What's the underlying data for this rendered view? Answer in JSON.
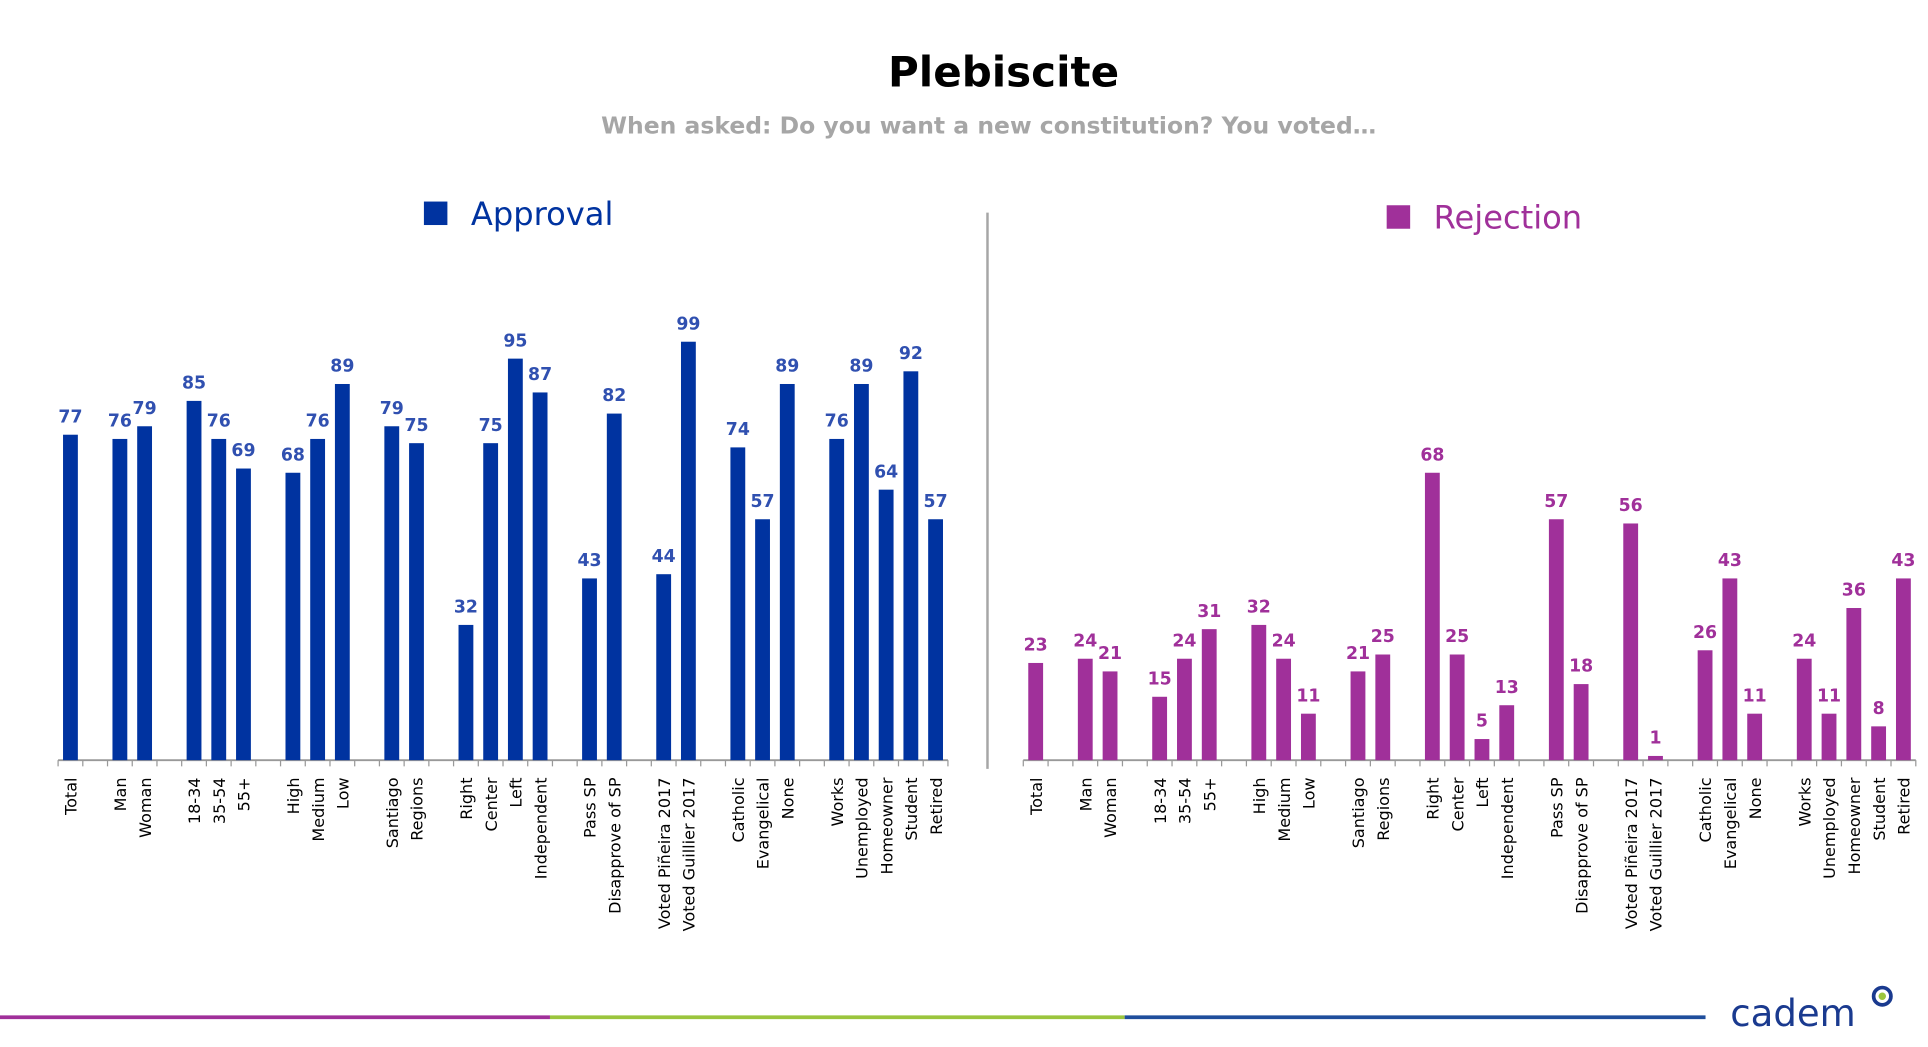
{
  "title": "Plebiscite",
  "subtitle": "When asked: Do you want a new constitution? You voted…",
  "logo": "cadem",
  "chart_data": [
    {
      "type": "bar",
      "categories": [
        "Total",
        null,
        "Man",
        "Woman",
        null,
        "18-34",
        "35-54",
        "55+",
        null,
        "High",
        "Medium",
        "Low",
        null,
        "Santiago",
        "Regions",
        null,
        "Right",
        "Center",
        "Left",
        "Independent",
        null,
        "Pass SP",
        "Disapprove of SP",
        null,
        "Voted Piñeira 2017",
        "Voted Guillier 2017",
        null,
        "Catholic",
        "Evangelical",
        "None",
        null,
        "Works",
        "Unemployed",
        "Homeowner",
        "Student",
        "Retired"
      ],
      "series": [
        {
          "name": "Approval",
          "color": "#0033a0",
          "values": [
            77,
            null,
            76,
            79,
            null,
            85,
            76,
            69,
            null,
            68,
            76,
            89,
            null,
            79,
            75,
            null,
            32,
            75,
            95,
            87,
            null,
            43,
            82,
            null,
            44,
            99,
            null,
            74,
            57,
            89,
            null,
            76,
            89,
            64,
            92,
            57
          ]
        }
      ],
      "ylim": [
        0,
        100
      ]
    },
    {
      "type": "bar",
      "categories": [
        "Total",
        null,
        "Man",
        "Woman",
        null,
        "18-34",
        "35-54",
        "55+",
        null,
        "High",
        "Medium",
        "Low",
        null,
        "Santiago",
        "Regions",
        null,
        "Right",
        "Center",
        "Left",
        "Independent",
        null,
        "Pass SP",
        "Disapprove of SP",
        null,
        "Voted Piñeira 2017",
        "Voted Guillier 2017",
        null,
        "Catholic",
        "Evangelical",
        "None",
        null,
        "Works",
        "Unemployed",
        "Homeowner",
        "Student",
        "Retired"
      ],
      "series": [
        {
          "name": "Rejection",
          "color": "#a0309a",
          "values": [
            23,
            null,
            24,
            21,
            null,
            15,
            24,
            31,
            null,
            32,
            24,
            11,
            null,
            21,
            25,
            null,
            68,
            25,
            5,
            13,
            null,
            57,
            18,
            null,
            56,
            1,
            null,
            26,
            43,
            11,
            null,
            24,
            11,
            36,
            8,
            43
          ]
        }
      ],
      "ylim": [
        0,
        100
      ]
    }
  ]
}
